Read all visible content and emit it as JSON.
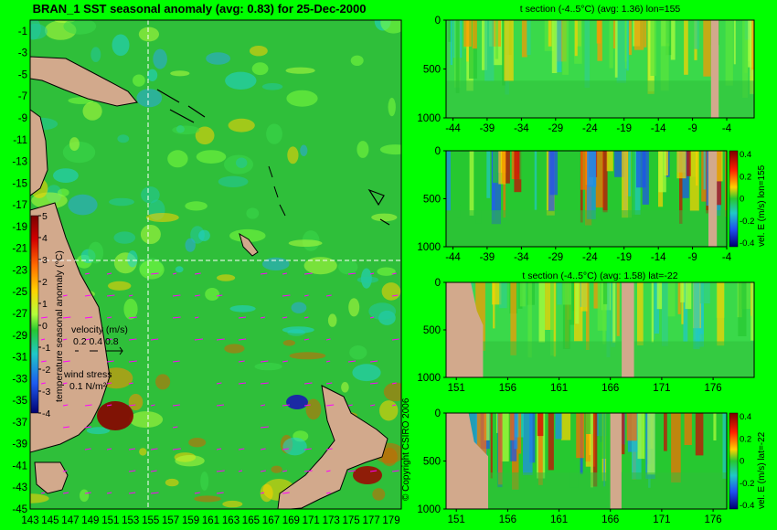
{
  "colors": {
    "background": "#00ff00",
    "land": "#d2a98c",
    "ocean_base": "#2fbf3a",
    "coastline": "#000000",
    "section_line": "#ffffff",
    "arrows": "#ff00ff"
  },
  "map": {
    "title": "BRAN_1  SST seasonal anomaly  (avg: 0.83)  for 25-Dec-2000",
    "lon_ticks": [
      "143",
      "145",
      "147",
      "149",
      "151",
      "153",
      "155",
      "157",
      "159",
      "161",
      "163",
      "165",
      "167",
      "169",
      "171",
      "173",
      "175",
      "177",
      "179"
    ],
    "lat_ticks": [
      "-1",
      "-3",
      "-5",
      "-7",
      "-9",
      "-11",
      "-13",
      "-15",
      "-17",
      "-19",
      "-21",
      "-23",
      "-25",
      "-27",
      "-29",
      "-31",
      "-33",
      "-35",
      "-37",
      "-39",
      "-41",
      "-43",
      "-45"
    ],
    "section_lon": 155,
    "section_lat": -22,
    "velocity_label": "velocity (m/s)",
    "velocity_scale": "0.2 0.4 0.8",
    "wind_label": "wind stress",
    "wind_scale": "0.1 N/m²",
    "copyright": "© Copyright CSIRO 2006"
  },
  "chart_data": [
    {
      "type": "heatmap",
      "name": "sst-anomaly-map",
      "title": "BRAN_1  SST seasonal anomaly  (avg: 0.83)  for 25-Dec-2000",
      "xlabel": "",
      "ylabel": "",
      "xlim": [
        143,
        180
      ],
      "ylim": [
        -45,
        0
      ],
      "colorbar": {
        "label": "temperature seasonal anomaly (°C)",
        "ticks": [
          "5",
          "4",
          "3",
          "2",
          "1",
          "0",
          "-1",
          "-2",
          "-3",
          "-4"
        ],
        "range": [
          -4,
          5
        ]
      }
    },
    {
      "type": "heatmap",
      "name": "t-section-lon155",
      "title": "t section  (-4..5°C)  (avg: 1.36)  lon=155",
      "x_ticks": [
        "-44",
        "-39",
        "-34",
        "-29",
        "-24",
        "-19",
        "-14",
        "-9",
        "-4"
      ],
      "y_ticks": [
        "0",
        "500",
        "1000"
      ],
      "xlim": [
        -45,
        0
      ],
      "ylim": [
        1000,
        0
      ]
    },
    {
      "type": "heatmap",
      "name": "u-section-lon155",
      "title": "",
      "x_ticks": [
        "-44",
        "-39",
        "-34",
        "-29",
        "-24",
        "-19",
        "-14",
        "-9",
        "-4"
      ],
      "y_ticks": [
        "0",
        "500",
        "1000"
      ],
      "xlim": [
        -45,
        0
      ],
      "ylim": [
        1000,
        0
      ],
      "colorbar": {
        "label": "vel. E (m/s) lon=155",
        "ticks": [
          "0.4",
          "0.2",
          "0",
          "-0.2",
          "-0.4"
        ],
        "range": [
          -0.4,
          0.4
        ]
      }
    },
    {
      "type": "heatmap",
      "name": "t-section-lat-22",
      "title": "t section  (-4..5°C)  (avg: 1.58) lat=-22",
      "x_ticks": [
        "151",
        "156",
        "161",
        "166",
        "171",
        "176"
      ],
      "y_ticks": [
        "0",
        "500",
        "1000"
      ],
      "xlim": [
        150,
        180
      ],
      "ylim": [
        1000,
        0
      ]
    },
    {
      "type": "heatmap",
      "name": "u-section-lat-22",
      "title": "",
      "x_ticks": [
        "151",
        "156",
        "161",
        "166",
        "171",
        "176"
      ],
      "y_ticks": [
        "0",
        "500",
        "1000"
      ],
      "xlim": [
        150,
        180
      ],
      "ylim": [
        1000,
        0
      ],
      "colorbar": {
        "label": "vel. E (m/s) lat=-22",
        "ticks": [
          "0.4",
          "0.2",
          "0",
          "-0.2",
          "-0.4"
        ],
        "range": [
          -0.4,
          0.4
        ]
      }
    }
  ]
}
